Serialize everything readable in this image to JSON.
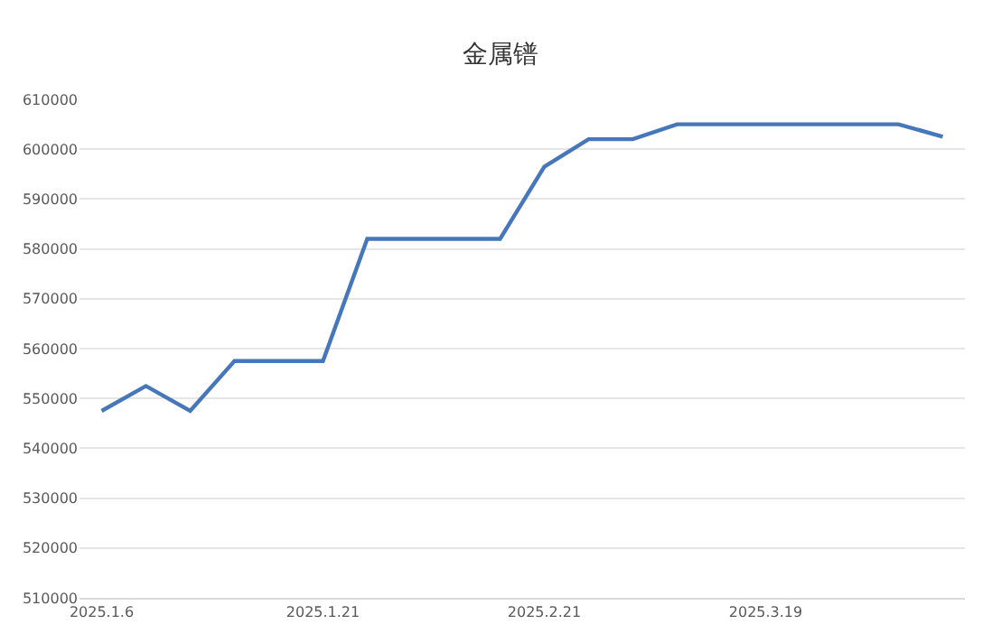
{
  "chart_data": {
    "type": "line",
    "title": "金属镨",
    "categories": [
      "2025.1.6",
      null,
      null,
      null,
      null,
      "2025.1.21",
      null,
      null,
      null,
      null,
      "2025.2.21",
      null,
      null,
      null,
      null,
      "2025.3.19",
      null,
      null,
      null,
      null
    ],
    "series": [
      {
        "color": "#4677bb",
        "values": [
          547500,
          552500,
          547500,
          557500,
          557500,
          557500,
          582000,
          582000,
          582000,
          582000,
          596500,
          602000,
          602000,
          605000,
          605000,
          605000,
          605000,
          605000,
          605000,
          602500
        ]
      }
    ],
    "ylim": [
      510000,
      610000
    ],
    "yticks": [
      510000,
      520000,
      530000,
      540000,
      550000,
      560000,
      570000,
      580000,
      590000,
      600000,
      610000
    ],
    "grid": "y",
    "legend": false,
    "marker": "none",
    "line_style": "solid"
  }
}
